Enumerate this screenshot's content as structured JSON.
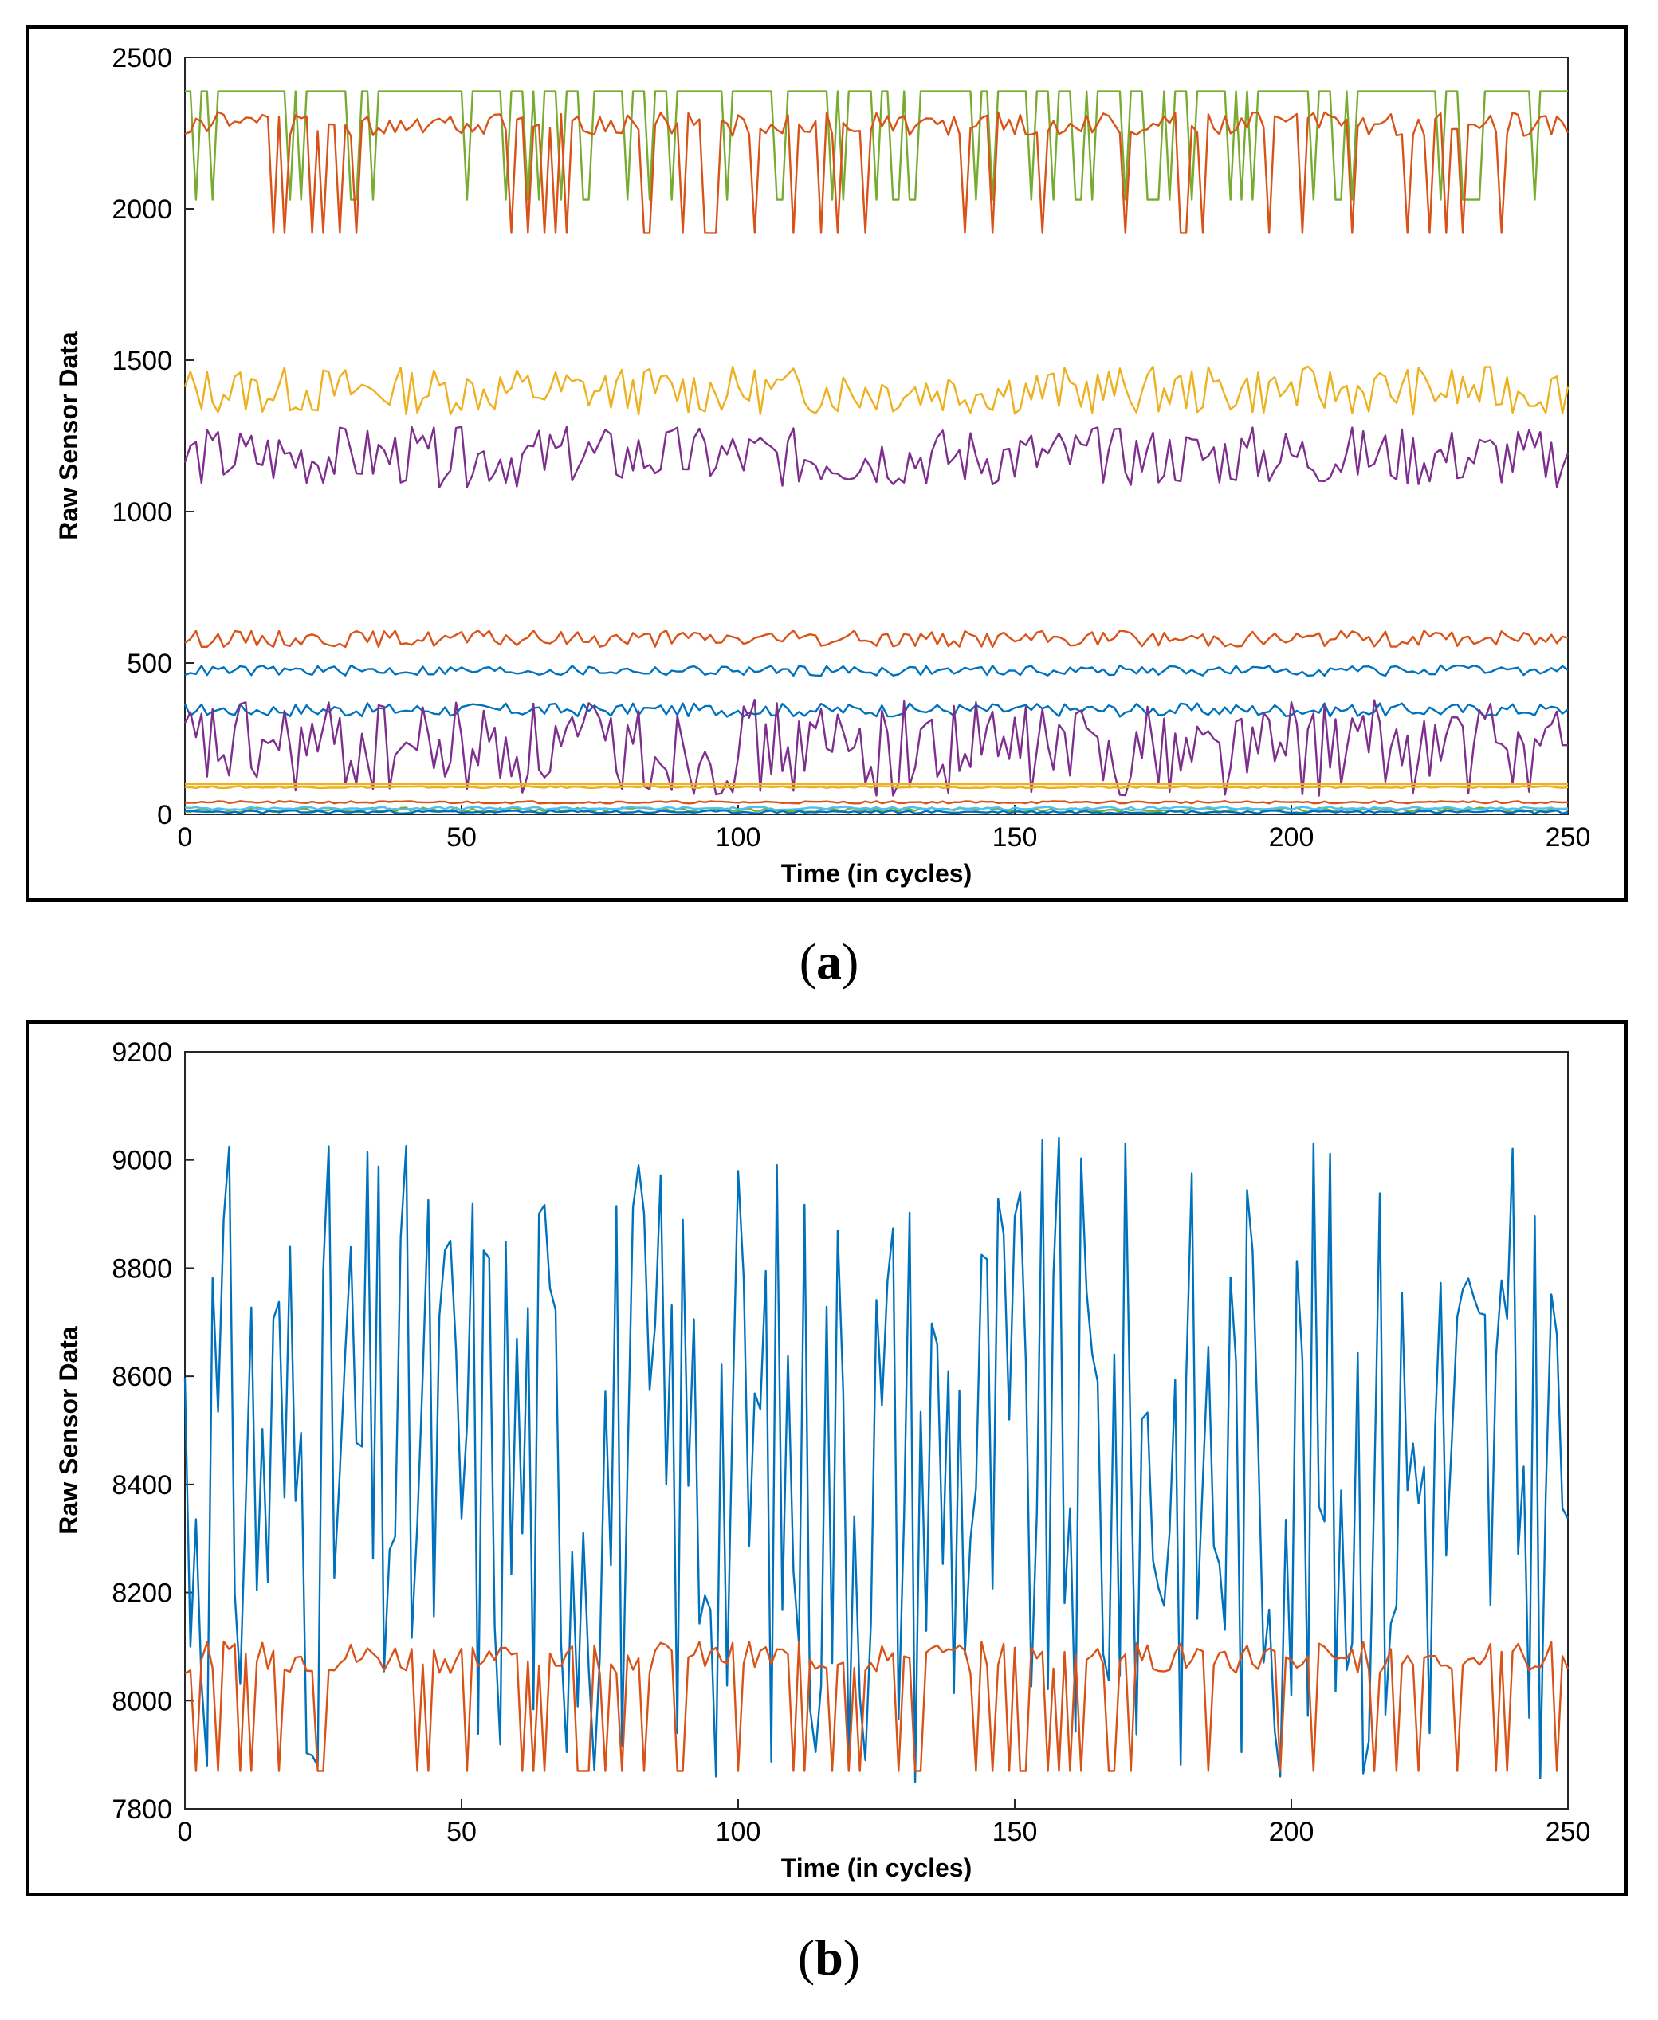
{
  "chart_data": [
    {
      "type": "line",
      "panel": "a",
      "title": "",
      "xlabel": "Time (in cycles)",
      "ylabel": "Raw Sensor Data",
      "xlim": [
        0,
        250
      ],
      "ylim": [
        0,
        2500
      ],
      "xticks": [
        0,
        50,
        100,
        150,
        200,
        250
      ],
      "yticks": [
        0,
        500,
        1000,
        1500,
        2000,
        2500
      ],
      "grid": false,
      "series": [
        {
          "name": "green",
          "color": "#77ac30",
          "base": 2388,
          "low": 2030,
          "kind": "bistable",
          "seed": 11
        },
        {
          "name": "orange-high",
          "color": "#d95319",
          "base": 2280,
          "amp": 80,
          "low": 1920,
          "kind": "spiky",
          "seed": 12
        },
        {
          "name": "yellow-upper",
          "color": "#edb120",
          "base": 1400,
          "amp": 160,
          "kind": "noise",
          "seed": 13
        },
        {
          "name": "purple-upper",
          "color": "#7e2f8e",
          "base": 1180,
          "amp": 200,
          "kind": "noise",
          "seed": 14
        },
        {
          "name": "orange-mid",
          "color": "#d95319",
          "base": 580,
          "amp": 55,
          "kind": "noise",
          "seed": 15
        },
        {
          "name": "blue-upper",
          "color": "#0072bd",
          "base": 475,
          "amp": 35,
          "kind": "noise",
          "seed": 16
        },
        {
          "name": "blue-lower",
          "color": "#0072bd",
          "base": 345,
          "amp": 45,
          "kind": "noise",
          "seed": 17
        },
        {
          "name": "purple-lower",
          "color": "#7e2f8e",
          "base": 220,
          "amp": 320,
          "kind": "noise",
          "seed": 18
        },
        {
          "name": "yellow-flat-1",
          "color": "#edb120",
          "base": 100,
          "amp": 0,
          "kind": "flat",
          "seed": 19
        },
        {
          "name": "yellow-flat-2",
          "color": "#edb120",
          "base": 90,
          "amp": 6,
          "kind": "noise",
          "seed": 20
        },
        {
          "name": "orange-flat",
          "color": "#d95319",
          "base": 40,
          "amp": 8,
          "kind": "noise",
          "seed": 21
        },
        {
          "name": "green-low",
          "color": "#77ac30",
          "base": 15,
          "amp": 15,
          "kind": "noise",
          "seed": 22
        },
        {
          "name": "blue-low",
          "color": "#0072bd",
          "base": 8,
          "amp": 10,
          "kind": "noise",
          "seed": 23
        },
        {
          "name": "cyan-low",
          "color": "#4dbeee",
          "base": 20,
          "amp": 10,
          "kind": "noise",
          "seed": 24
        }
      ]
    },
    {
      "type": "line",
      "panel": "b",
      "title": "",
      "xlabel": "Time (in cycles)",
      "ylabel": "Raw Sensor Data",
      "xlim": [
        0,
        250
      ],
      "ylim": [
        7800,
        9200
      ],
      "xticks": [
        0,
        50,
        100,
        150,
        200,
        250
      ],
      "yticks": [
        7800,
        8000,
        8200,
        8400,
        8600,
        8800,
        9000,
        9200
      ],
      "grid": false,
      "series": [
        {
          "name": "blue",
          "color": "#0072bd",
          "base": 8450,
          "amp": 600,
          "kind": "wild",
          "seed": 31
        },
        {
          "name": "orange",
          "color": "#d95319",
          "base": 8080,
          "amp": 60,
          "low": 7870,
          "kind": "spiky",
          "seed": 32
        }
      ]
    }
  ],
  "captions": {
    "a": "a",
    "b": "b"
  }
}
